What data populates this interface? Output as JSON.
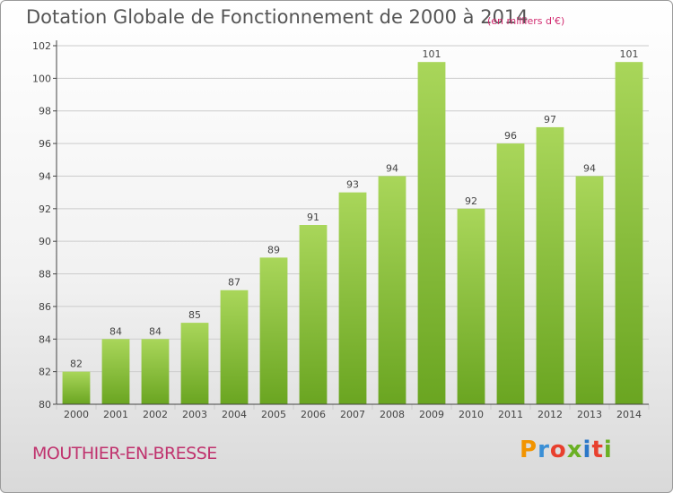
{
  "header": {
    "title": "Dotation Globale de Fonctionnement de 2000 à 2014",
    "unit": "(en milliers d'€)"
  },
  "footer": {
    "commune": "MOUTHIER-EN-BRESSE",
    "logo_letters": [
      "P",
      "r",
      "o",
      "x",
      "i",
      "t",
      "i"
    ],
    "logo_colors": [
      "#f29400",
      "#3a8fd6",
      "#e8402e",
      "#6ab023",
      "#2c78c8",
      "#e8402e",
      "#6ab023"
    ]
  },
  "chart_data": {
    "type": "bar",
    "title": "Dotation Globale de Fonctionnement de 2000 à 2014",
    "xlabel": "",
    "ylabel": "",
    "categories": [
      "2000",
      "2001",
      "2002",
      "2003",
      "2004",
      "2005",
      "2006",
      "2007",
      "2008",
      "2009",
      "2010",
      "2011",
      "2012",
      "2013",
      "2014"
    ],
    "values": [
      82,
      84,
      84,
      85,
      87,
      89,
      91,
      93,
      94,
      101,
      92,
      96,
      97,
      94,
      101
    ],
    "ylim": [
      80,
      102
    ],
    "yticks": [
      "80",
      "82",
      "84",
      "86",
      "88",
      "90",
      "92",
      "94",
      "96",
      "98",
      "100",
      "102"
    ],
    "grid": true,
    "legend": "none",
    "colors": {
      "bar_light": "#a9d65a",
      "bar_dark": "#6aa521",
      "grid": "#cccccc",
      "axis": "#444444",
      "text": "#444444"
    }
  }
}
